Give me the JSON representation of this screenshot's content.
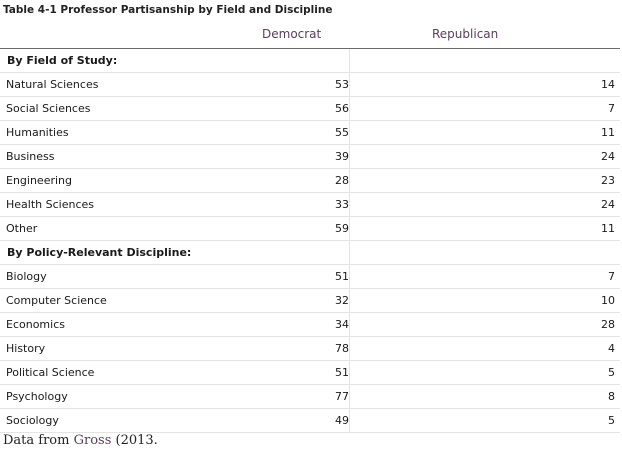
{
  "table": {
    "caption": "Table 4-1 Professor Partisanship by Field and Discipline",
    "columns": [
      "Democrat",
      "Republican"
    ],
    "sections": [
      {
        "heading": "By Field of Study:",
        "rows": [
          {
            "label": "Natural Sciences",
            "democrat": "53",
            "republican": "14"
          },
          {
            "label": "Social Sciences",
            "democrat": "56",
            "republican": "7"
          },
          {
            "label": "Humanities",
            "democrat": "55",
            "republican": "11"
          },
          {
            "label": "Business",
            "democrat": "39",
            "republican": "24"
          },
          {
            "label": "Engineering",
            "democrat": "28",
            "republican": "23"
          },
          {
            "label": "Health Sciences",
            "democrat": "33",
            "republican": "24"
          },
          {
            "label": "Other",
            "democrat": "59",
            "republican": "11"
          }
        ]
      },
      {
        "heading": "By Policy-Relevant Discipline:",
        "rows": [
          {
            "label": "Biology",
            "democrat": "51",
            "republican": "7"
          },
          {
            "label": "Computer Science",
            "democrat": "32",
            "republican": "10"
          },
          {
            "label": "Economics",
            "democrat": "34",
            "republican": "28"
          },
          {
            "label": "History",
            "democrat": "78",
            "republican": "4"
          },
          {
            "label": "Political Science",
            "democrat": "51",
            "republican": "5"
          },
          {
            "label": "Psychology",
            "democrat": "77",
            "republican": "8"
          },
          {
            "label": "Sociology",
            "democrat": "49",
            "republican": "5"
          }
        ]
      }
    ]
  },
  "source": {
    "prefix": "Data from ",
    "author": "Gross",
    "suffix": " (2013."
  }
}
